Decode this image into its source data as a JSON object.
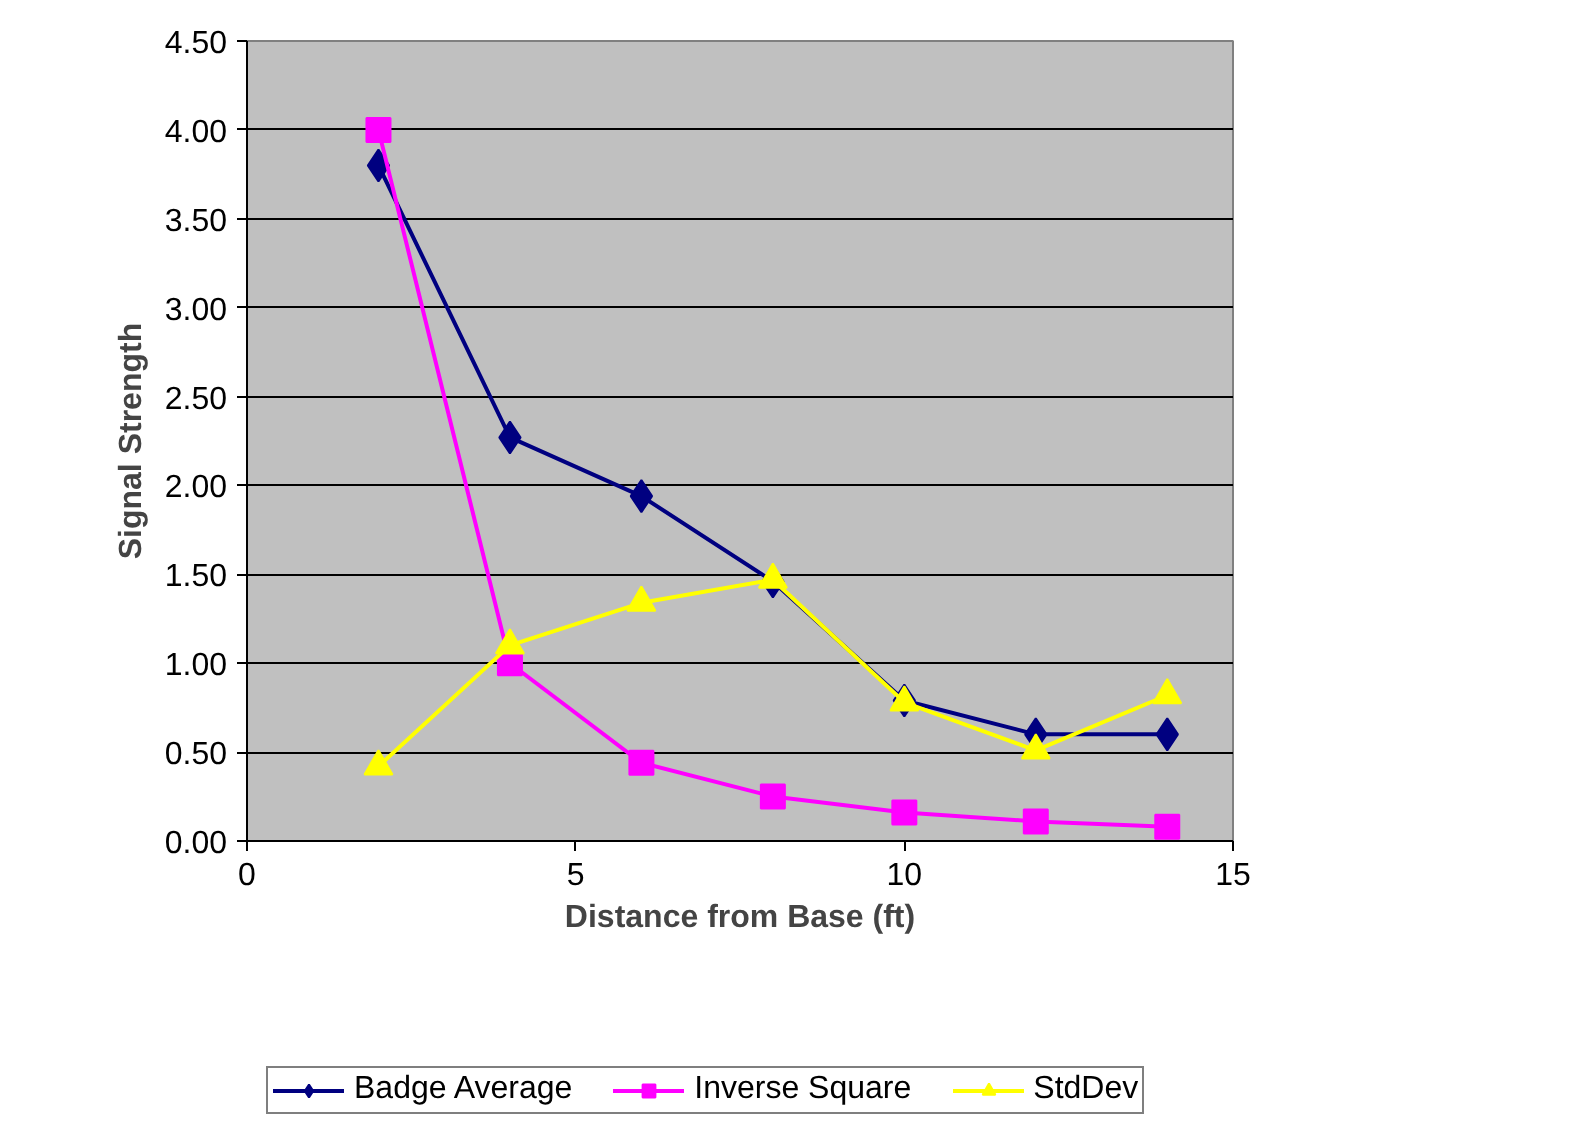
{
  "chart_data": {
    "type": "line",
    "xlabel": "Distance from Base (ft)",
    "ylabel": "Signal Strength",
    "x": [
      2,
      4,
      6,
      8,
      10,
      12,
      14
    ],
    "series": [
      {
        "name": "Badge Average",
        "color": "#000080",
        "marker": "diamond",
        "values": [
          3.8,
          2.27,
          1.94,
          1.46,
          0.79,
          0.6,
          0.6
        ]
      },
      {
        "name": "Inverse Square",
        "color": "#ff00ff",
        "marker": "square",
        "values": [
          4.0,
          1.0,
          0.44,
          0.25,
          0.16,
          0.11,
          0.08
        ]
      },
      {
        "name": "StdDev",
        "color": "#ffff00",
        "marker": "triangle",
        "values": [
          0.42,
          1.1,
          1.34,
          1.47,
          0.78,
          0.51,
          0.82
        ]
      }
    ],
    "xlim": [
      0,
      15
    ],
    "xticks": [
      0,
      5,
      10,
      15
    ],
    "ylim": [
      0,
      4.5
    ],
    "yticks": [
      {
        "value": 0,
        "label": "0.00"
      },
      {
        "value": 0.5,
        "label": "0.50"
      },
      {
        "value": 1,
        "label": "1.00"
      },
      {
        "value": 1.5,
        "label": "1.50"
      },
      {
        "value": 2,
        "label": "2.00"
      },
      {
        "value": 2.5,
        "label": "2.50"
      },
      {
        "value": 3,
        "label": "3.00"
      },
      {
        "value": 3.5,
        "label": "3.50"
      },
      {
        "value": 4,
        "label": "4.00"
      },
      {
        "value": 4.5,
        "label": "4.50"
      }
    ],
    "grid": "y",
    "legend": "bottom"
  }
}
